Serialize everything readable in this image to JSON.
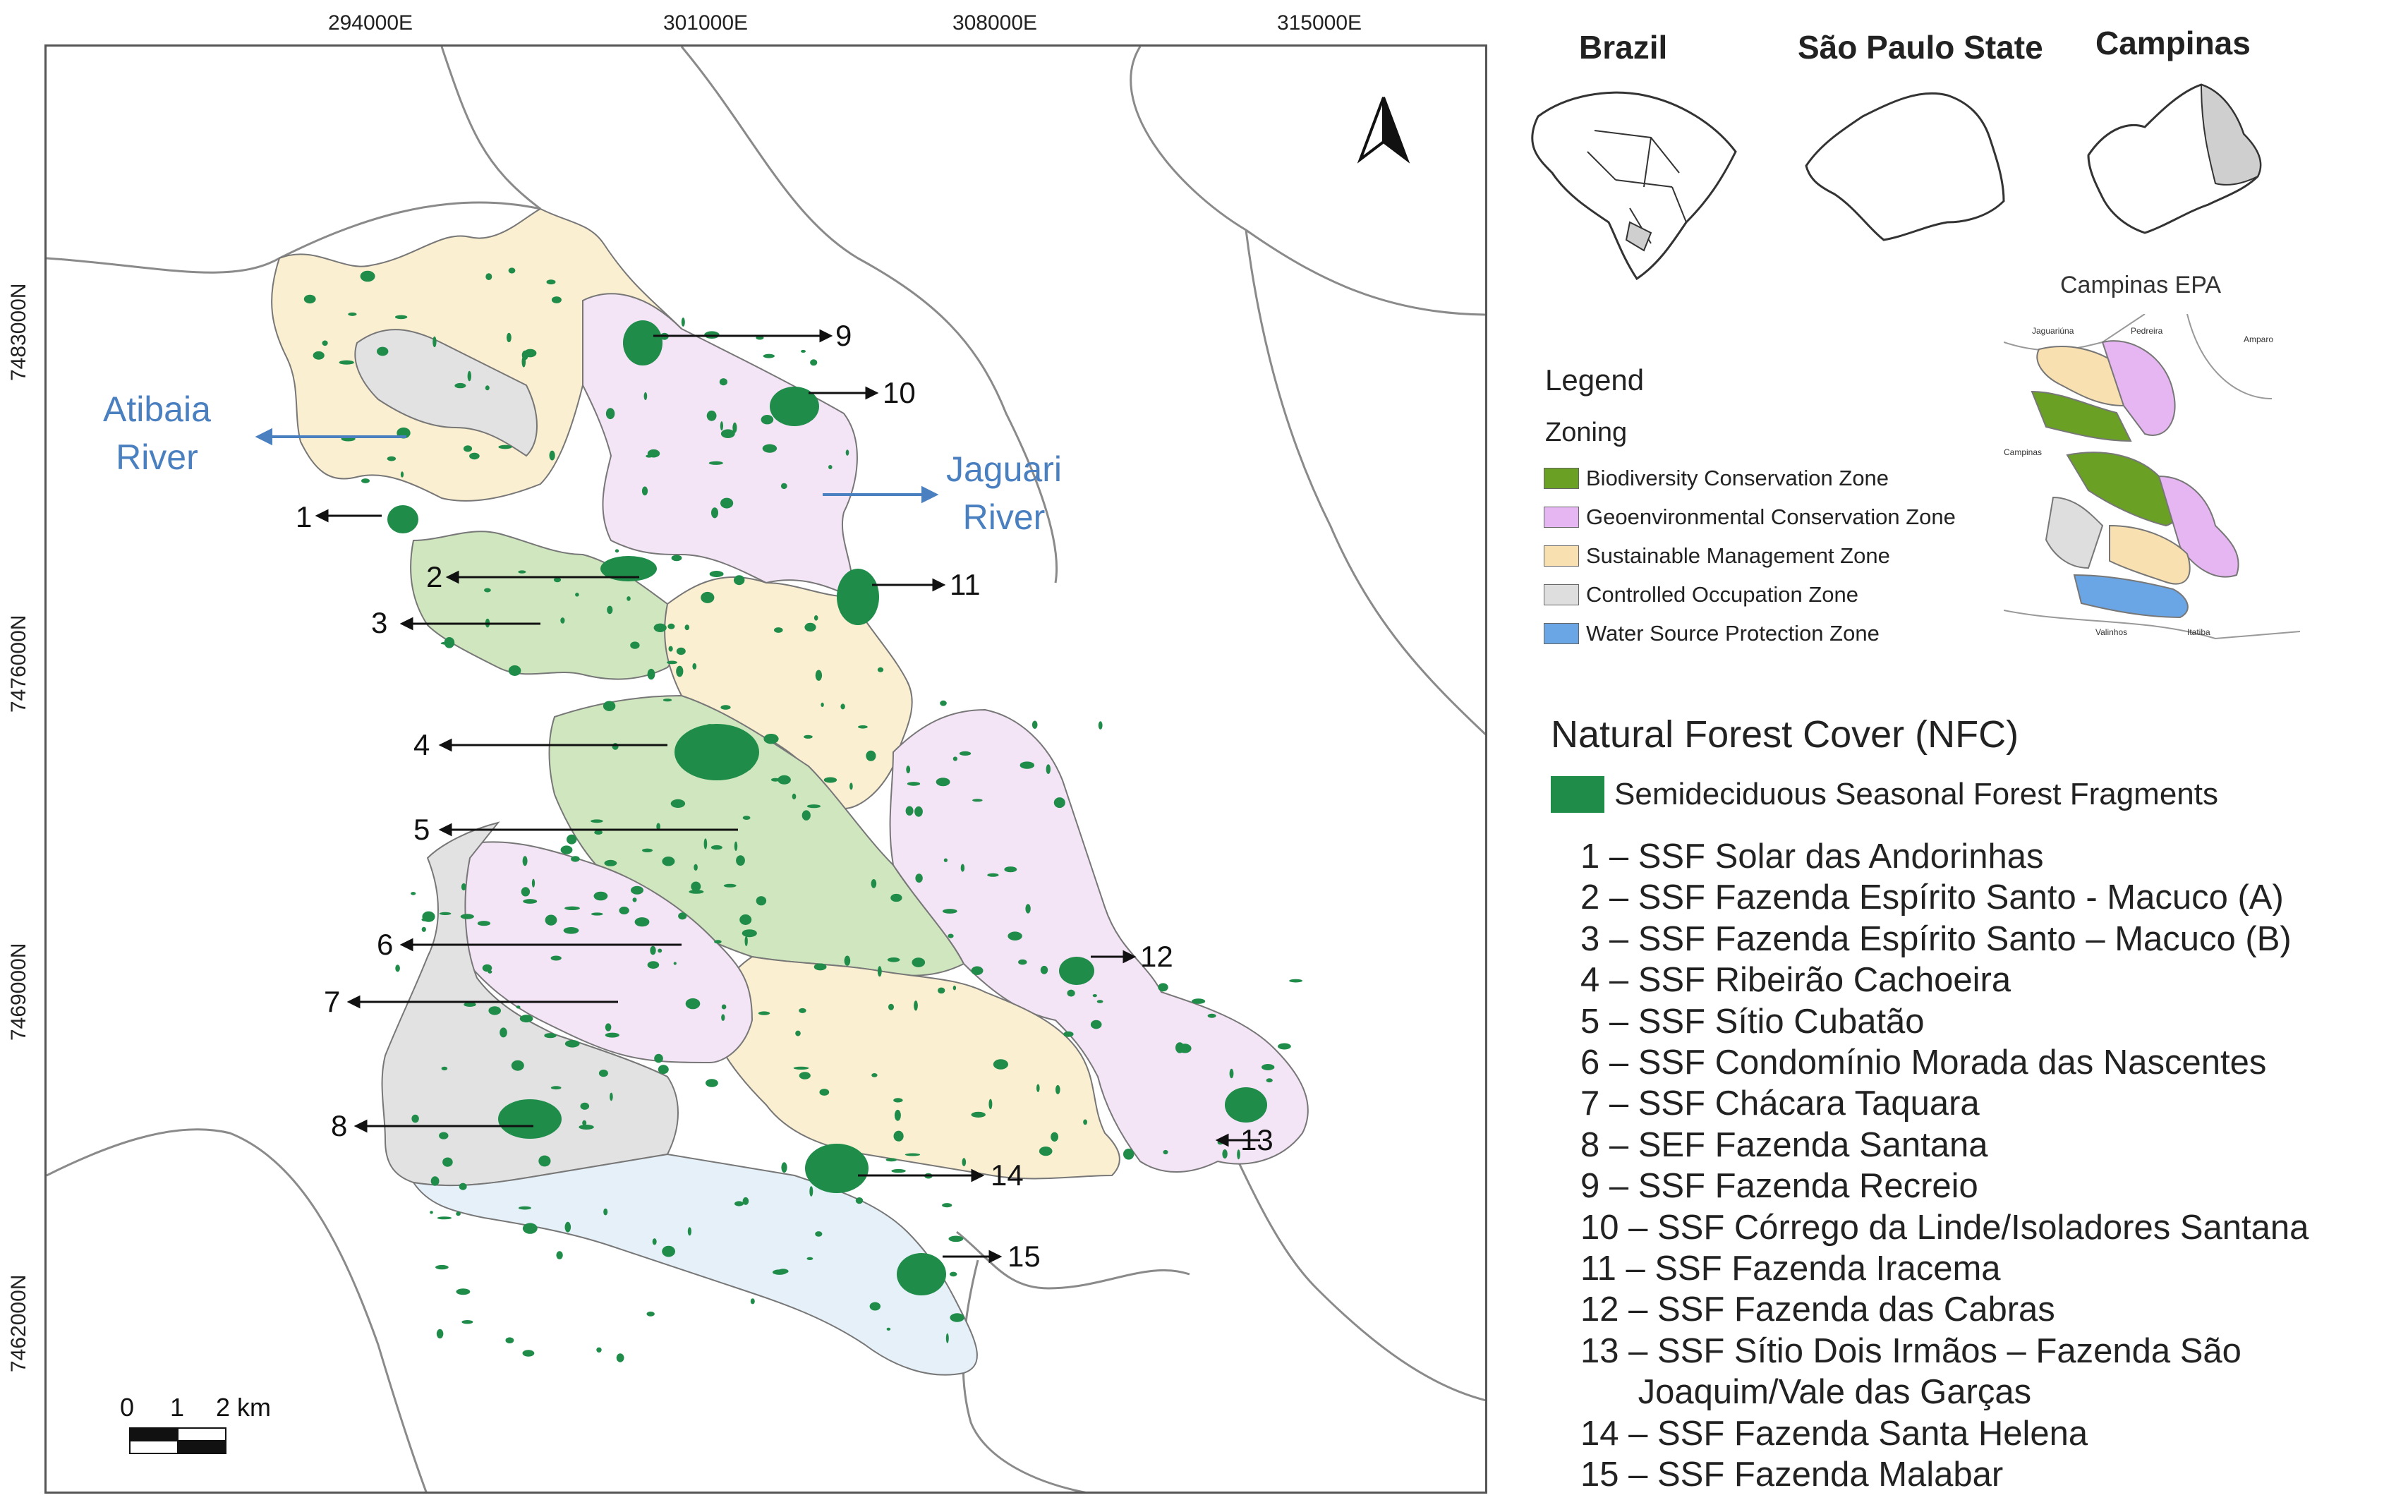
{
  "map": {
    "coords_x": [
      "294000E",
      "301000E",
      "308000E",
      "315000E"
    ],
    "coords_y": [
      "7483000N",
      "7476000N",
      "7469000N",
      "7462000N"
    ],
    "rivers": {
      "atibaia": [
        "Atibaia",
        "River"
      ],
      "jaguari": [
        "Jaguari",
        "River"
      ]
    },
    "scale": {
      "labels": [
        "0",
        "1",
        "2 km"
      ]
    },
    "callouts": [
      "1",
      "2",
      "3",
      "4",
      "5",
      "6",
      "7",
      "8",
      "9",
      "10",
      "11",
      "12",
      "13",
      "14",
      "15"
    ],
    "colors": {
      "biodiversity": "#cfe6bf",
      "geoenvironmental": "#f3e4f6",
      "sustainable": "#fbefd2",
      "controlled": "#e2e2e2",
      "water": "#e6f0f8",
      "forest": "#1f8c4a",
      "boundary": "#8a8a8a"
    }
  },
  "insets": {
    "brazil": "Brazil",
    "sao_paulo": "São Paulo State",
    "campinas": "Campinas",
    "campinas_epa": "Campinas EPA",
    "epa_place_labels": [
      "Jaguariúna",
      "Pedreira",
      "Amparo",
      "Campinas",
      "Valinhos",
      "Itatiba"
    ]
  },
  "legend": {
    "title": "Legend",
    "zoning_title": "Zoning",
    "zones": [
      {
        "label": "Biodiversity Conservation Zone",
        "color": "#6aa023"
      },
      {
        "label": "Geoenvironmental Conservation Zone",
        "color": "#e6b6f2"
      },
      {
        "label": "Sustainable Management Zone",
        "color": "#f8e0b0"
      },
      {
        "label": "Controlled Occupation Zone",
        "color": "#dedede"
      },
      {
        "label": "Water Source Protection Zone",
        "color": "#6aa6e6"
      }
    ],
    "nfc_title": "Natural Forest Cover (NFC)",
    "nfc_item": "Semideciduous Seasonal Forest Fragments",
    "nfc_color": "#1f8c4a",
    "sites": [
      "1 – SSF Solar das Andorinhas",
      "2 – SSF Fazenda Espírito Santo - Macuco (A)",
      "3 – SSF Fazenda Espírito Santo – Macuco (B)",
      "4 – SSF Ribeirão Cachoeira",
      "5 – SSF Sítio Cubatão",
      "6 – SSF Condomínio Morada das Nascentes",
      "7 – SSF Chácara Taquara",
      "8 – SEF Fazenda Santana",
      "9 – SSF Fazenda Recreio",
      "10 – SSF Córrego da Linde/Isoladores Santana",
      "11 – SSF Fazenda Iracema",
      "12 – SSF Fazenda das Cabras",
      "13 – SSF Sítio Dois Irmãos – Fazenda São",
      "      Joaquim/Vale das Garças",
      "14 – SSF Fazenda Santa Helena",
      "15 – SSF Fazenda Malabar"
    ]
  }
}
